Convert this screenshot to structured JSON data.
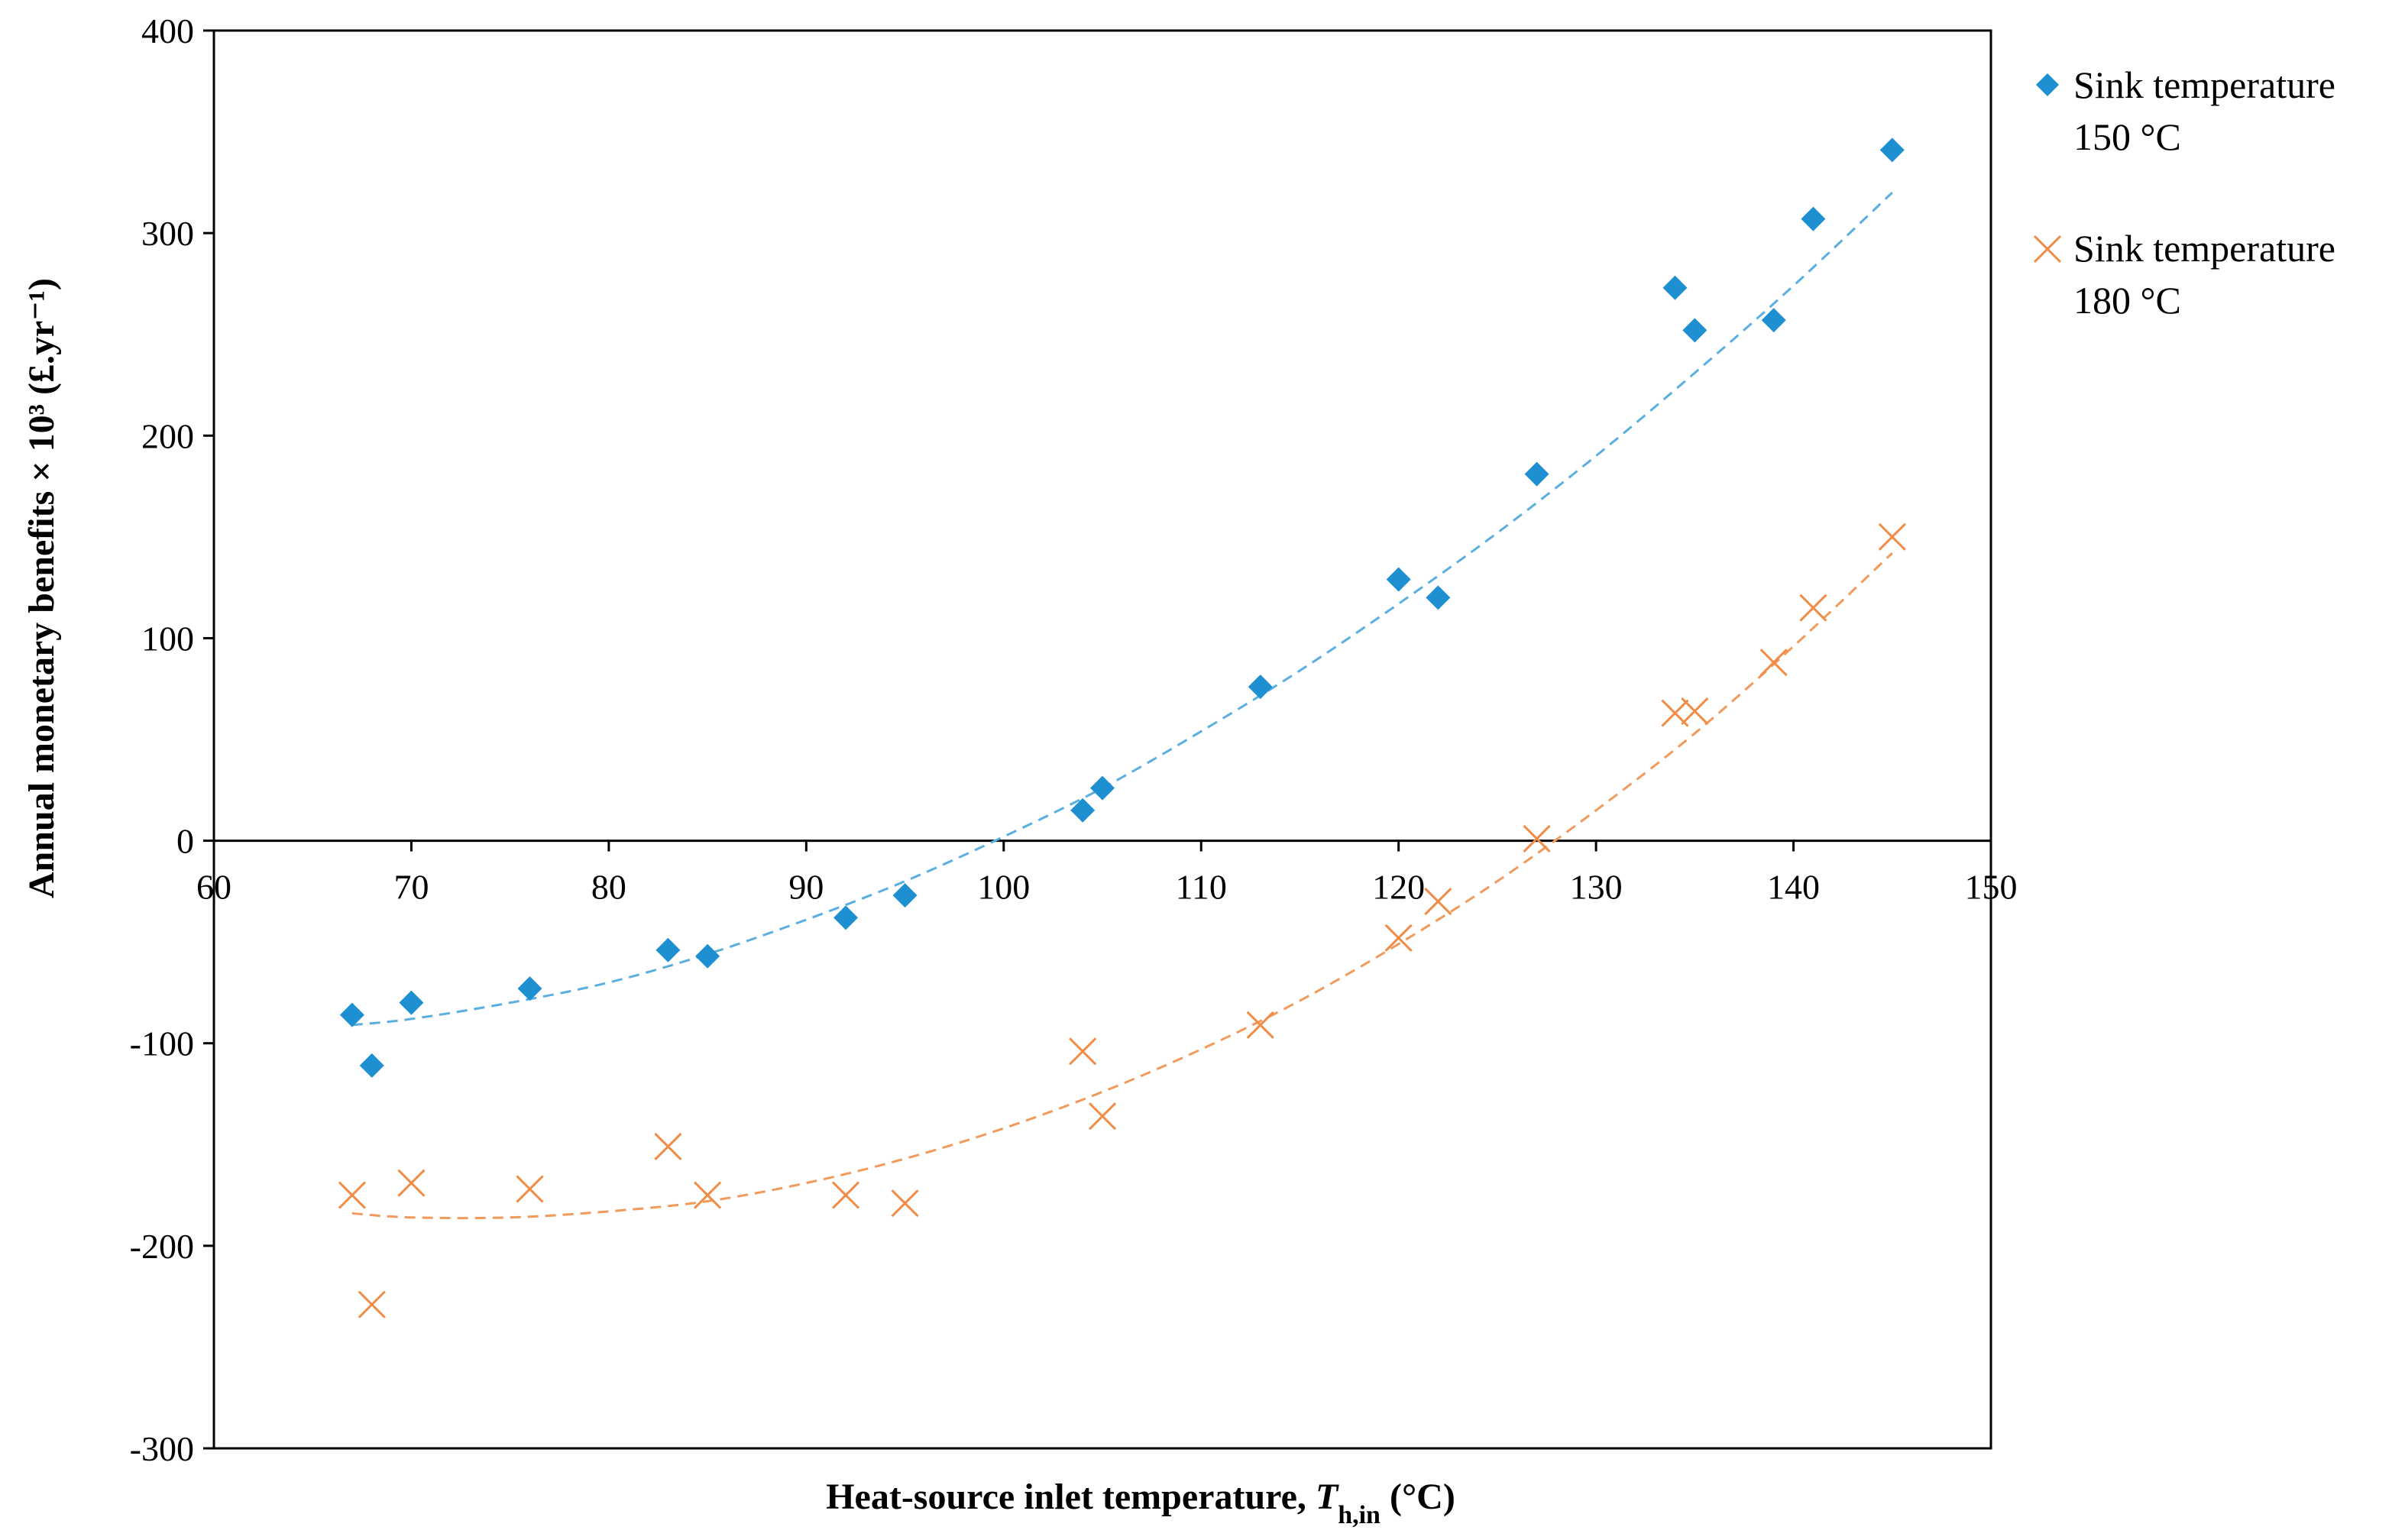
{
  "chart_data": {
    "type": "scatter",
    "title": "",
    "xlabel": {
      "prefix": "Heat-source inlet temperature, ",
      "symbol": "T",
      "subscript": "h,in",
      "suffix": " (°C)"
    },
    "ylabel": "Annual monetary benefits × 10³ (£.yr⁻¹)",
    "xlim": [
      60,
      150
    ],
    "ylim": [
      -300,
      400
    ],
    "xticks": [
      60,
      70,
      80,
      90,
      100,
      110,
      120,
      130,
      140,
      150
    ],
    "yticks": [
      -300,
      -200,
      -100,
      0,
      100,
      200,
      300,
      400
    ],
    "xtick_labels": [
      "60",
      "70",
      "80",
      "90",
      "100",
      "110",
      "120",
      "130",
      "140",
      "150"
    ],
    "ytick_labels": [
      "-300",
      "-200",
      "-100",
      "0",
      "100",
      "200",
      "300",
      "400"
    ],
    "grid": false,
    "legend_position": "right",
    "series": [
      {
        "name": "Sink temperature 150 °C",
        "legend_lines": [
          "Sink temperature",
          "150 °C"
        ],
        "marker": "diamond",
        "color": "#1E90D2",
        "trend_color": "#5AAFE0",
        "x": [
          67,
          68,
          70,
          76,
          83,
          85,
          92,
          95,
          104,
          105,
          113,
          120,
          122,
          127,
          134,
          135,
          139,
          141,
          145
        ],
        "y": [
          -86,
          -111,
          -80,
          -73,
          -54,
          -57,
          -38,
          -27,
          15,
          26,
          76,
          129,
          120,
          181,
          273,
          252,
          257,
          307,
          341
        ],
        "trendline": {
          "type": "polynomial",
          "x": [
            67,
            70,
            75,
            80,
            85,
            90,
            95,
            100,
            105,
            110,
            115,
            120,
            125,
            130,
            135,
            140,
            145
          ],
          "y": [
            -91,
            -88,
            -80,
            -70,
            -56,
            -39,
            -20,
            2,
            26,
            54,
            84,
            117,
            152,
            190,
            231,
            274,
            320
          ]
        }
      },
      {
        "name": "Sink temperature 180 °C",
        "legend_lines": [
          "Sink temperature",
          "180 °C"
        ],
        "marker": "x",
        "color": "#F08C46",
        "trend_color": "#F29A5C",
        "x": [
          67,
          68,
          70,
          76,
          83,
          85,
          92,
          95,
          104,
          105,
          113,
          120,
          122,
          127,
          134,
          135,
          139,
          141,
          145
        ],
        "y": [
          -175,
          -229,
          -169,
          -172,
          -151,
          -175,
          -175,
          -179,
          -104,
          -136,
          -91,
          -48,
          -30,
          1,
          63,
          64,
          88,
          115,
          150
        ],
        "trendline": {
          "type": "polynomial",
          "x": [
            67,
            70,
            75,
            80,
            85,
            90,
            95,
            100,
            105,
            110,
            115,
            120,
            125,
            130,
            135,
            140,
            145
          ],
          "y": [
            -184,
            -186,
            -186,
            -183,
            -178,
            -169,
            -157,
            -142,
            -124,
            -103,
            -79,
            -51,
            -20,
            15,
            53,
            96,
            142
          ]
        }
      }
    ]
  }
}
